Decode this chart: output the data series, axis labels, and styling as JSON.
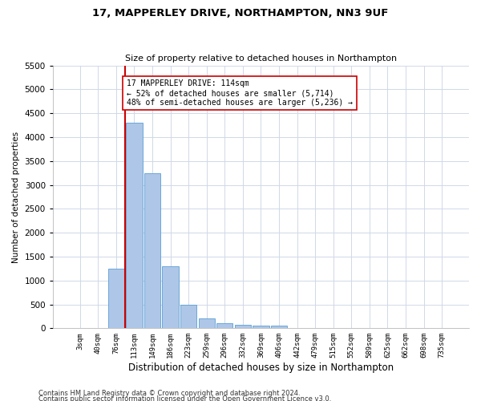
{
  "title1": "17, MAPPERLEY DRIVE, NORTHAMPTON, NN3 9UF",
  "title2": "Size of property relative to detached houses in Northampton",
  "xlabel": "Distribution of detached houses by size in Northampton",
  "ylabel": "Number of detached properties",
  "categories": [
    "3sqm",
    "40sqm",
    "76sqm",
    "113sqm",
    "149sqm",
    "186sqm",
    "223sqm",
    "259sqm",
    "296sqm",
    "332sqm",
    "369sqm",
    "406sqm",
    "442sqm",
    "479sqm",
    "515sqm",
    "552sqm",
    "589sqm",
    "625sqm",
    "662sqm",
    "698sqm",
    "735sqm"
  ],
  "values": [
    0,
    0,
    1250,
    4300,
    3250,
    1300,
    500,
    200,
    100,
    75,
    50,
    50,
    0,
    0,
    0,
    0,
    0,
    0,
    0,
    0,
    0
  ],
  "bar_color": "#aec6e8",
  "bar_edge_color": "#5a9fd4",
  "vline_index": 3,
  "vline_color": "#cc0000",
  "ylim": [
    0,
    5500
  ],
  "yticks": [
    0,
    500,
    1000,
    1500,
    2000,
    2500,
    3000,
    3500,
    4000,
    4500,
    5000,
    5500
  ],
  "annotation_text": "17 MAPPERLEY DRIVE: 114sqm\n← 52% of detached houses are smaller (5,714)\n48% of semi-detached houses are larger (5,236) →",
  "annotation_box_color": "#ffffff",
  "annotation_box_edge": "#cc0000",
  "footnote1": "Contains HM Land Registry data © Crown copyright and database right 2024.",
  "footnote2": "Contains public sector information licensed under the Open Government Licence v3.0.",
  "background_color": "#ffffff",
  "grid_color": "#d0d8e8",
  "title1_fontsize": 9.5,
  "title2_fontsize": 8,
  "xlabel_fontsize": 8.5,
  "ylabel_fontsize": 7.5,
  "xtick_fontsize": 6.5,
  "ytick_fontsize": 7.5,
  "footnote_fontsize": 6,
  "annot_fontsize": 7
}
